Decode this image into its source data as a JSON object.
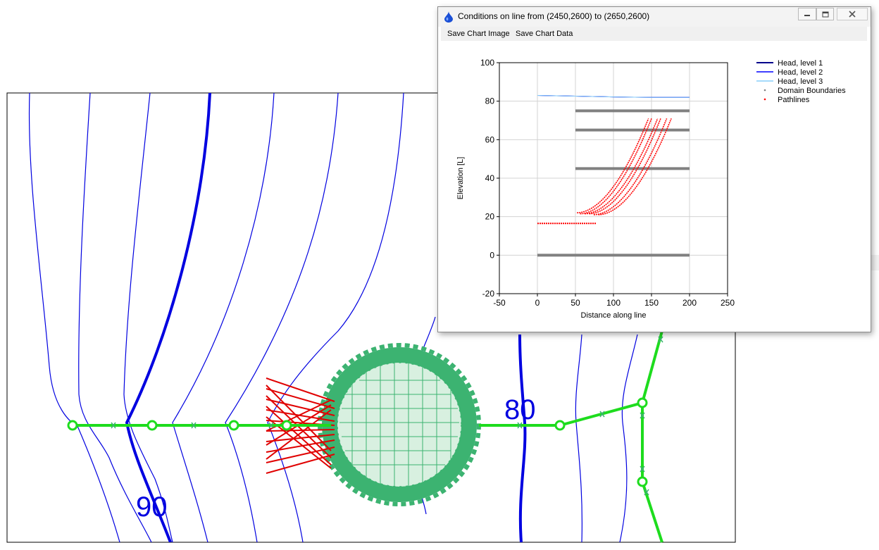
{
  "map": {
    "contour_labels": [
      {
        "text": "90"
      },
      {
        "text": "80"
      }
    ]
  },
  "dialog": {
    "title": "Conditions on line from (2450,2600) to (2650,2600)",
    "icon": "water-drop-icon",
    "controls": {
      "minimize": "minimize-icon",
      "maximize": "maximize-icon",
      "close": "close-icon"
    },
    "menu": [
      {
        "label": "Save Chart Image"
      },
      {
        "label": "Save Chart Data"
      }
    ]
  },
  "chart_data": {
    "type": "line",
    "title": "",
    "xlabel": "Distance along line",
    "ylabel": "Elevation [L]",
    "xlim": [
      -50,
      250
    ],
    "ylim": [
      -20,
      100
    ],
    "xticks": [
      "-50",
      "0",
      "50",
      "100",
      "150",
      "200",
      "250"
    ],
    "yticks": [
      "-20",
      "0",
      "20",
      "40",
      "60",
      "80",
      "100"
    ],
    "grid": true,
    "legend_position": "top-right",
    "series": [
      {
        "name": "Head, level 1",
        "color": "#00008b",
        "points": [
          [
            0,
            83
          ],
          [
            50,
            82.6
          ],
          [
            100,
            82.2
          ],
          [
            150,
            82
          ],
          [
            200,
            82
          ]
        ]
      },
      {
        "name": "Head, level 2",
        "color": "#0000ff",
        "points": [
          [
            0,
            83
          ],
          [
            50,
            82.6
          ],
          [
            100,
            82.2
          ],
          [
            150,
            82
          ],
          [
            200,
            82
          ]
        ]
      },
      {
        "name": "Head, level 3",
        "color": "#87cefa",
        "points": [
          [
            0,
            83
          ],
          [
            50,
            82.6
          ],
          [
            100,
            82.2
          ],
          [
            150,
            82
          ],
          [
            200,
            82
          ]
        ]
      }
    ],
    "domain_boundaries": {
      "name": "Domain Boundaries",
      "color": "#808080",
      "segments": [
        {
          "x": [
            50,
            200
          ],
          "y": 75
        },
        {
          "x": [
            50,
            200
          ],
          "y": 65
        },
        {
          "x": [
            50,
            200
          ],
          "y": 45
        },
        {
          "x": [
            0,
            200
          ],
          "y": 0
        }
      ]
    },
    "pathlines": {
      "name": "Pathlines",
      "color": "#ff0000",
      "horizontal": {
        "x": [
          0,
          77
        ],
        "y": 16.5
      },
      "curves": [
        {
          "x0": 52,
          "y0": 22,
          "x1": 146,
          "y1": 71
        },
        {
          "x0": 56,
          "y0": 21.5,
          "x1": 150,
          "y1": 71
        },
        {
          "x0": 62,
          "y0": 21.5,
          "x1": 158,
          "y1": 71
        },
        {
          "x0": 68,
          "y0": 21.5,
          "x1": 162,
          "y1": 71
        },
        {
          "x0": 74,
          "y0": 21,
          "x1": 170,
          "y1": 71
        },
        {
          "x0": 80,
          "y0": 21,
          "x1": 176,
          "y1": 71
        }
      ]
    }
  }
}
